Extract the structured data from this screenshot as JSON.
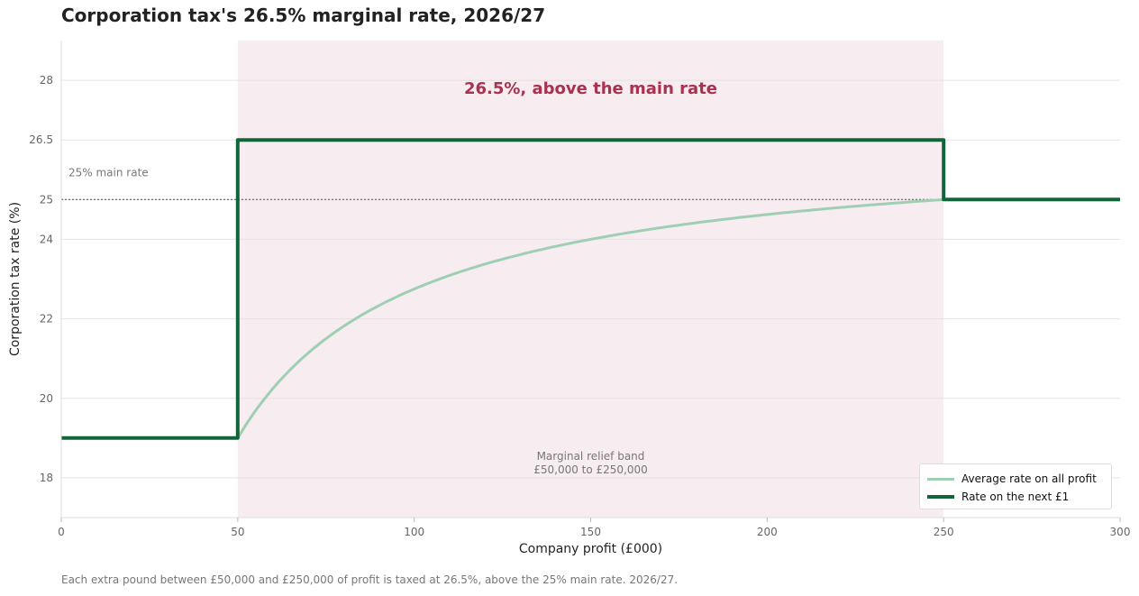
{
  "title": "Corporation tax's 26.5% marginal rate, 2026/27",
  "footnote": "Each extra pound between £50,000 and £250,000 of profit is taxed at 26.5%, above the 25% main rate. 2026/27.",
  "colors": {
    "marginal_line": "#12653a",
    "average_line": "#9fcfb3",
    "band_fill": "#f7ecf0",
    "highlight_text": "#a8324f",
    "reference_line": "#777777"
  },
  "chart_data": {
    "type": "line",
    "xlabel": "Company profit (£000)",
    "ylabel": "Corporation tax rate (%)",
    "xlim": [
      0,
      300
    ],
    "ylim": [
      17,
      29
    ],
    "x_ticks": [
      0,
      50,
      100,
      150,
      200,
      250,
      300
    ],
    "y_ticks": [
      18,
      20,
      22,
      24,
      25,
      26.5,
      28
    ],
    "grid": true,
    "legend_position": "bottom-right",
    "series": [
      {
        "name": "Average rate on all profit",
        "x": [
          0,
          50,
          55,
          60,
          70,
          80,
          90,
          100,
          125,
          150,
          175,
          200,
          225,
          250,
          300
        ],
        "y": [
          19,
          19,
          19.68,
          20.25,
          21.14,
          21.81,
          22.33,
          22.75,
          23.5,
          24.0,
          24.36,
          24.63,
          24.83,
          25,
          25
        ]
      },
      {
        "name": "Rate on the next £1",
        "x": [
          0,
          50,
          50,
          250,
          250,
          300
        ],
        "y": [
          19,
          19,
          26.5,
          26.5,
          25,
          25
        ]
      }
    ],
    "reference_line": {
      "y": 25,
      "label": "25% main rate"
    },
    "shaded_band": {
      "x": [
        50,
        250
      ],
      "label_line1": "Marginal relief band",
      "label_line2": "£50,000 to £250,000"
    },
    "annotation": {
      "text": "26.5%, above the main rate",
      "x": 150,
      "y": 27.5
    }
  }
}
